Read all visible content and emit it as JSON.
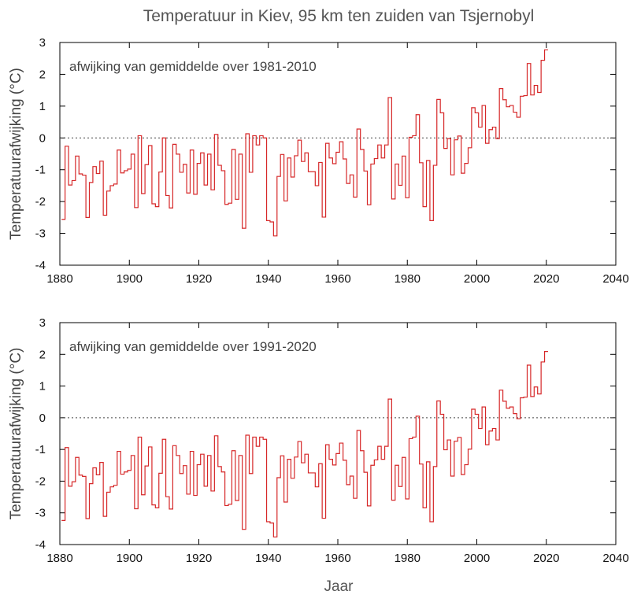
{
  "title": "Temperatuur in Kiev, 95 km ten zuiden van Tsjernobyl",
  "xlabel": "Jaar",
  "colors": {
    "line": "#d62728",
    "axis": "#000000",
    "zero": "#444444"
  },
  "chart_data": [
    {
      "type": "line",
      "step": true,
      "annotation": "afwijking van gemiddelde over 1981-2010",
      "ylabel": "Temperatuurafwijking (°C)",
      "xlabel": "",
      "xlim": [
        1880,
        2040
      ],
      "ylim": [
        -4,
        3
      ],
      "xticks": [
        "1880",
        "1900",
        "1920",
        "1940",
        "1960",
        "1980",
        "2000",
        "2020",
        "2040"
      ],
      "yticks": [
        "3",
        "2",
        "1",
        "0",
        "-1",
        "-2",
        "-3",
        "-4"
      ],
      "zero_line": true,
      "x_start": 1881,
      "values": [
        -2.56,
        -0.26,
        -1.48,
        -1.34,
        -0.57,
        -1.13,
        -1.17,
        -2.5,
        -1.4,
        -0.9,
        -1.12,
        -0.73,
        -2.43,
        -1.67,
        -1.5,
        -1.45,
        -0.38,
        -1.1,
        -1.03,
        -0.98,
        -0.51,
        -2.19,
        0.07,
        -1.75,
        -0.84,
        -0.24,
        -2.07,
        -2.16,
        -1.07,
        0,
        -1.81,
        -2.2,
        -0.2,
        -0.51,
        -1.08,
        -0.83,
        -1.73,
        -0.38,
        -1.77,
        -0.8,
        -0.47,
        -1.48,
        -0.51,
        -1.63,
        0.11,
        -0.86,
        -1.03,
        -2.09,
        -2.05,
        -0.36,
        -1.93,
        -0.51,
        -2.84,
        0.13,
        -1.08,
        0.07,
        -0.22,
        0.07,
        0,
        -2.6,
        -2.64,
        -3.08,
        -1.21,
        -0.52,
        -1.98,
        -0.63,
        -1.23,
        -0.56,
        -0.07,
        -0.74,
        -0.47,
        -1.06,
        -1.06,
        -1.5,
        -0.77,
        -2.49,
        -0.17,
        -0.63,
        -0.81,
        -0.45,
        -0.12,
        -0.66,
        -1.43,
        -1.16,
        -1.86,
        0.28,
        -0.36,
        -1.04,
        -2.1,
        -0.82,
        -0.65,
        -0.22,
        -0.63,
        -0.22,
        1.27,
        -1.92,
        -0.82,
        -1.49,
        -0.57,
        -1.88,
        0.02,
        0.07,
        0.73,
        -0.78,
        -2.16,
        -0.71,
        -2.6,
        -0.86,
        1.21,
        0.79,
        -0.33,
        -0.02,
        -1.16,
        -0.06,
        0.06,
        -1.11,
        -0.8,
        -0.31,
        0.95,
        0.79,
        0.34,
        1.02,
        -0.17,
        0.26,
        0.34,
        -0.02,
        1.55,
        1.2,
        0.98,
        1.02,
        0.81,
        0.65,
        1.31,
        1.33,
        2.34,
        1.35,
        1.65,
        1.43,
        2.44,
        2.77
      ]
    },
    {
      "type": "line",
      "step": true,
      "annotation": "afwijking van gemiddelde over 1991-2020",
      "ylabel": "Temperatuurafwijking (°C)",
      "xlabel": "Jaar",
      "xlim": [
        1880,
        2040
      ],
      "ylim": [
        -4,
        3
      ],
      "xticks": [
        "1880",
        "1900",
        "1920",
        "1940",
        "1960",
        "1980",
        "2000",
        "2020",
        "2040"
      ],
      "yticks": [
        "3",
        "2",
        "1",
        "0",
        "-1",
        "-2",
        "-3",
        "-4"
      ],
      "zero_line": true,
      "x_start": 1881,
      "values": [
        -3.24,
        -0.94,
        -2.16,
        -2.02,
        -1.25,
        -1.81,
        -1.85,
        -3.18,
        -2.08,
        -1.58,
        -1.8,
        -1.41,
        -3.11,
        -2.35,
        -2.18,
        -2.13,
        -1.06,
        -1.78,
        -1.71,
        -1.66,
        -1.19,
        -2.87,
        -0.61,
        -2.43,
        -1.52,
        -0.92,
        -2.75,
        -2.84,
        -1.75,
        -0.68,
        -2.49,
        -2.88,
        -0.88,
        -1.19,
        -1.76,
        -1.51,
        -2.41,
        -1.06,
        -2.45,
        -1.48,
        -1.15,
        -2.16,
        -1.19,
        -2.31,
        -0.57,
        -1.54,
        -1.71,
        -2.77,
        -2.73,
        -1.04,
        -2.61,
        -1.19,
        -3.52,
        -0.55,
        -1.76,
        -0.61,
        -0.9,
        -0.61,
        -0.68,
        -3.28,
        -3.32,
        -3.76,
        -1.89,
        -1.2,
        -2.66,
        -1.31,
        -1.91,
        -1.24,
        -0.75,
        -1.42,
        -1.15,
        -1.74,
        -1.74,
        -2.18,
        -1.45,
        -3.17,
        -0.85,
        -1.31,
        -1.49,
        -1.13,
        -0.8,
        -1.34,
        -2.11,
        -1.84,
        -2.54,
        -0.4,
        -1.04,
        -1.72,
        -2.78,
        -1.5,
        -1.33,
        -0.9,
        -1.31,
        -0.9,
        0.59,
        -2.6,
        -1.5,
        -2.17,
        -1.25,
        -2.56,
        -0.66,
        -0.61,
        0.05,
        -1.46,
        -2.84,
        -1.39,
        -3.28,
        -1.54,
        0.53,
        0.11,
        -1.01,
        -0.7,
        -1.84,
        -0.74,
        -0.62,
        -1.79,
        -1.48,
        -0.99,
        0.27,
        0.11,
        -0.34,
        0.34,
        -0.85,
        -0.42,
        -0.34,
        -0.7,
        0.87,
        0.52,
        0.3,
        0.34,
        0.13,
        -0.03,
        0.63,
        0.65,
        1.66,
        0.67,
        0.97,
        0.75,
        1.76,
        2.09
      ]
    }
  ]
}
